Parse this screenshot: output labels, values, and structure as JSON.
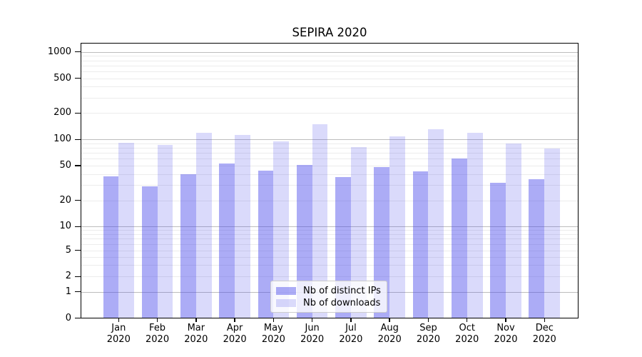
{
  "title": "SEPIRA 2020",
  "chart_data": {
    "type": "bar",
    "title": "SEPIRA 2020",
    "categories": [
      "Jan 2020",
      "Feb 2020",
      "Mar 2020",
      "Apr 2020",
      "May 2020",
      "Jun 2020",
      "Jul 2020",
      "Aug 2020",
      "Sep 2020",
      "Oct 2020",
      "Nov 2020",
      "Dec 2020"
    ],
    "series": [
      {
        "name": "Nb of distinct IPs",
        "color": "rgba(70,70,235,0.45)",
        "values": [
          38,
          29,
          40,
          53,
          44,
          51,
          37,
          48,
          43,
          60,
          32,
          35
        ]
      },
      {
        "name": "Nb of downloads",
        "color": "rgba(70,70,235,0.20)",
        "values": [
          91,
          86,
          118,
          112,
          95,
          150,
          82,
          108,
          132,
          120,
          89,
          78
        ]
      }
    ],
    "yscale": "symlog",
    "ylim": [
      0,
      1259
    ],
    "y_ticks": [
      1000,
      500,
      200,
      100,
      50,
      20,
      10,
      5,
      2,
      1,
      0
    ],
    "grid": true,
    "grid_major_at": [
      1,
      10,
      100,
      1000
    ],
    "legend_position": "lower center",
    "xlabel": "",
    "ylabel": ""
  },
  "colors": {
    "bar_distinct_ips": "rgba(70,70,235,0.45)",
    "bar_downloads": "rgba(70,70,235,0.20)",
    "grid_major": "#bdbdbd",
    "grid_minor": "#ececec",
    "spine": "#000000",
    "legend_border": "#cccccc"
  }
}
